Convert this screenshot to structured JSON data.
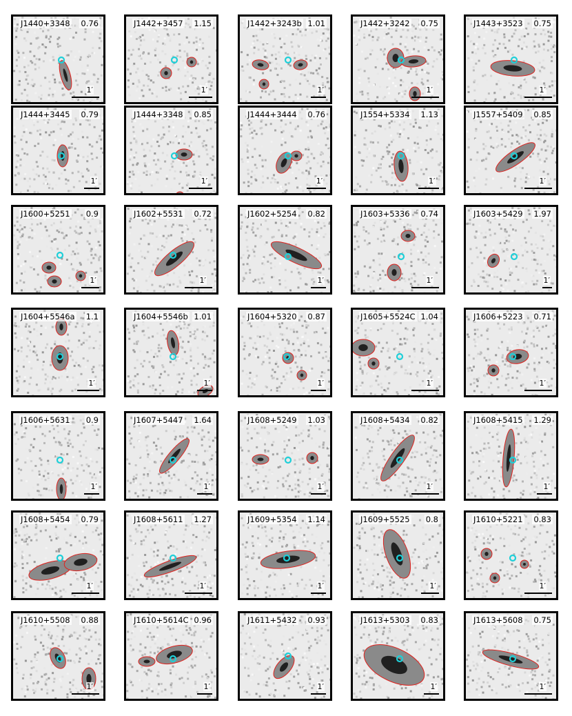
{
  "scale_label": "1′",
  "colors": {
    "contour": "#e0201c",
    "host": "#1ecfd8",
    "frame": "#000000"
  },
  "panels": [
    {
      "name": "J1440+3348",
      "value": "0.76"
    },
    {
      "name": "J1442+3457",
      "value": "1.15"
    },
    {
      "name": "J1442+3243b",
      "value": "1.01"
    },
    {
      "name": "J1442+3242",
      "value": "0.75"
    },
    {
      "name": "J1443+3523",
      "value": "0.75"
    },
    {
      "name": "J1444+3445",
      "value": "0.79"
    },
    {
      "name": "J1444+3348",
      "value": "0.85"
    },
    {
      "name": "J1444+3444",
      "value": "0.76"
    },
    {
      "name": "J1554+5334",
      "value": "1.13"
    },
    {
      "name": "J1557+5409",
      "value": "0.85"
    },
    {
      "name": "J1600+5251",
      "value": "0.9"
    },
    {
      "name": "J1602+5531",
      "value": "0.72"
    },
    {
      "name": "J1602+5254",
      "value": "0.82"
    },
    {
      "name": "J1603+5336",
      "value": "0.74"
    },
    {
      "name": "J1603+5429",
      "value": "1.97"
    },
    {
      "name": "J1604+5546a",
      "value": "1.1"
    },
    {
      "name": "J1604+5546b",
      "value": "1.01"
    },
    {
      "name": "J1604+5320",
      "value": "0.87"
    },
    {
      "name": "J1605+5524C",
      "value": "1.04"
    },
    {
      "name": "J1606+5223",
      "value": "0.71"
    },
    {
      "name": "J1606+5631",
      "value": "0.9"
    },
    {
      "name": "J1607+5447",
      "value": "1.64"
    },
    {
      "name": "J1608+5249",
      "value": "1.03"
    },
    {
      "name": "J1608+5434",
      "value": "0.82"
    },
    {
      "name": "J1608+5415",
      "value": "1.29"
    },
    {
      "name": "J1608+5454",
      "value": "0.79"
    },
    {
      "name": "J1608+5611",
      "value": "1.27"
    },
    {
      "name": "J1609+5354",
      "value": "1.14"
    },
    {
      "name": "J1609+5525",
      "value": "0.8"
    },
    {
      "name": "J1610+5221",
      "value": "0.83"
    },
    {
      "name": "J1610+5508",
      "value": "0.88"
    },
    {
      "name": "J1610+5614C",
      "value": "0.96"
    },
    {
      "name": "J1611+5432",
      "value": "0.93"
    },
    {
      "name": "J1613+5303",
      "value": "0.83"
    },
    {
      "name": "J1613+5608",
      "value": "0.75"
    }
  ]
}
